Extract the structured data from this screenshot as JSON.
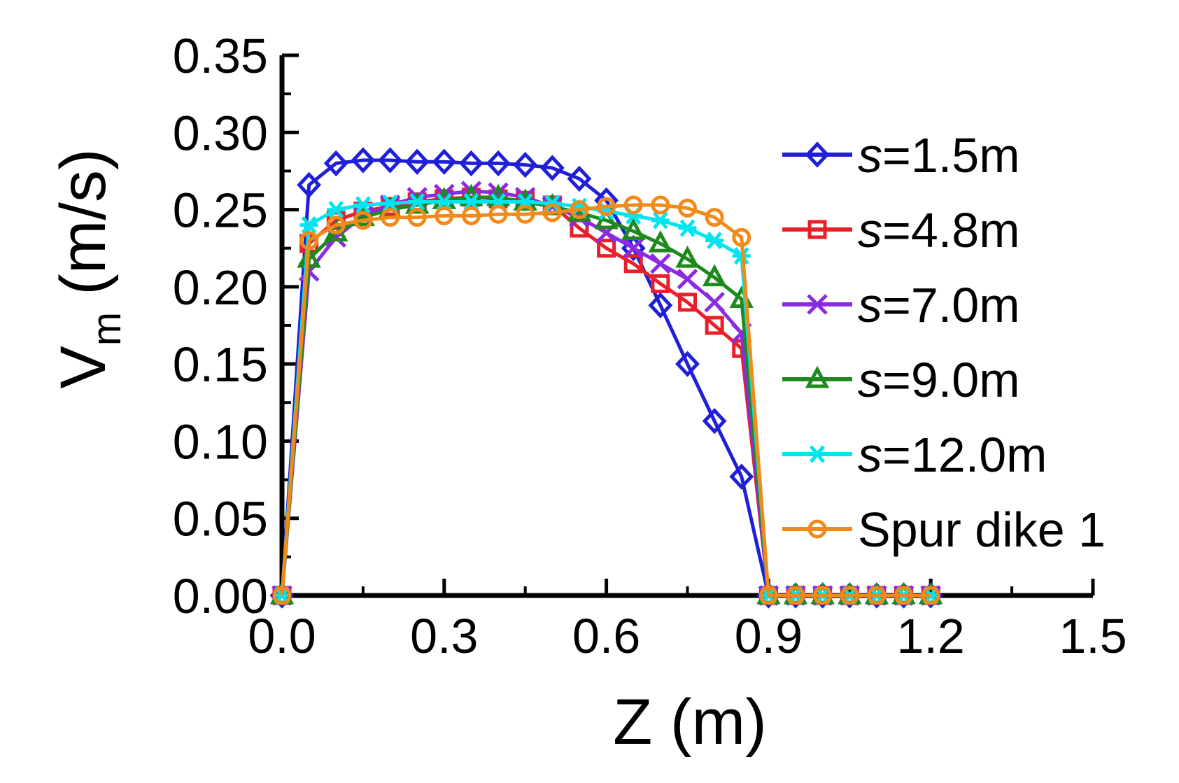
{
  "chart_data": {
    "type": "line",
    "title": "",
    "xlabel": "Z (m)",
    "ylabel_main": "V",
    "ylabel_sub": "m",
    "ylabel_unit": "(m/s)",
    "xlim": [
      0,
      1.5
    ],
    "ylim": [
      0,
      0.35
    ],
    "x_ticks": [
      "0.0",
      "0.3",
      "0.6",
      "0.9",
      "1.2",
      "1.5"
    ],
    "y_ticks": [
      "0.00",
      "0.05",
      "0.10",
      "0.15",
      "0.20",
      "0.25",
      "0.30",
      "0.35"
    ],
    "grid": false,
    "legend_position": "right",
    "x": [
      0,
      0.05,
      0.1,
      0.15,
      0.2,
      0.25,
      0.3,
      0.35,
      0.4,
      0.45,
      0.5,
      0.55,
      0.6,
      0.65,
      0.7,
      0.75,
      0.8,
      0.85,
      0.9,
      0.95,
      1.0,
      1.05,
      1.1,
      1.15,
      1.2
    ],
    "series": [
      {
        "name": "s=1.5m",
        "name_italic": "s",
        "name_rest": "=1.5m",
        "color": "#1f1fd9",
        "marker": "diamond",
        "values": [
          0,
          0.266,
          0.28,
          0.282,
          0.282,
          0.281,
          0.281,
          0.28,
          0.28,
          0.279,
          0.277,
          0.27,
          0.256,
          0.225,
          0.188,
          0.15,
          0.113,
          0.077,
          0,
          0,
          0,
          0,
          0,
          0,
          0
        ]
      },
      {
        "name": "s=4.8m",
        "name_italic": "s",
        "name_rest": "=4.8m",
        "color": "#e8202a",
        "marker": "square",
        "values": [
          0,
          0.228,
          0.243,
          0.249,
          0.252,
          0.255,
          0.257,
          0.258,
          0.257,
          0.256,
          0.253,
          0.238,
          0.225,
          0.215,
          0.202,
          0.19,
          0.175,
          0.16,
          0,
          0,
          0,
          0,
          0,
          0,
          0
        ]
      },
      {
        "name": "s=7.0m",
        "name_italic": "s",
        "name_rest": "=7.0m",
        "color": "#8a2be2",
        "marker": "x",
        "values": [
          0,
          0.21,
          0.232,
          0.246,
          0.253,
          0.258,
          0.26,
          0.262,
          0.261,
          0.258,
          0.252,
          0.245,
          0.235,
          0.225,
          0.215,
          0.205,
          0.19,
          0.17,
          0,
          0,
          0,
          0,
          0,
          0,
          0
        ]
      },
      {
        "name": "s=9.0m",
        "name_italic": "s",
        "name_rest": "=9.0m",
        "color": "#1e8a1e",
        "marker": "triangle",
        "values": [
          0,
          0.218,
          0.235,
          0.245,
          0.25,
          0.253,
          0.256,
          0.258,
          0.258,
          0.255,
          0.252,
          0.248,
          0.243,
          0.236,
          0.228,
          0.218,
          0.206,
          0.192,
          0,
          0,
          0,
          0,
          0,
          0,
          0
        ]
      },
      {
        "name": "s=12.0m",
        "name_italic": "s",
        "name_rest": "=12.0m",
        "color": "#00e5ee",
        "marker": "asterisk",
        "values": [
          0,
          0.24,
          0.25,
          0.253,
          0.254,
          0.255,
          0.255,
          0.255,
          0.255,
          0.255,
          0.254,
          0.252,
          0.249,
          0.246,
          0.243,
          0.238,
          0.23,
          0.22,
          0,
          0,
          0,
          0,
          0,
          0,
          0
        ]
      },
      {
        "name": "Spur dike 1",
        "name_italic": "",
        "name_rest": "Spur dike 1",
        "color": "#f28a1a",
        "marker": "circle",
        "values": [
          0,
          0.23,
          0.24,
          0.243,
          0.245,
          0.245,
          0.246,
          0.246,
          0.247,
          0.247,
          0.248,
          0.25,
          0.252,
          0.253,
          0.253,
          0.251,
          0.245,
          0.232,
          0,
          0,
          0,
          0,
          0,
          0,
          0
        ]
      }
    ]
  }
}
